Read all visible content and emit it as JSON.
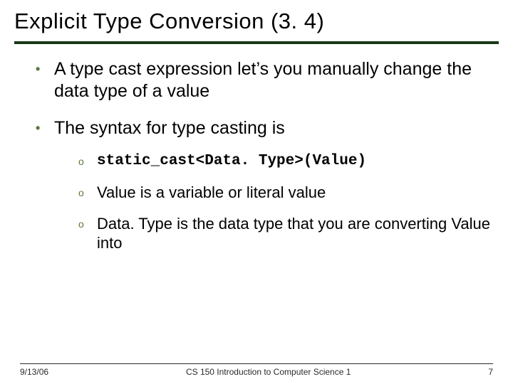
{
  "title": "Explicit Type Conversion (3. 4)",
  "colors": {
    "rule": "#1a3a1a",
    "bullet": "#5a7a3a",
    "text": "#000000",
    "background": "#ffffff"
  },
  "typography": {
    "title_fontsize": 31,
    "body_fontsize": 25,
    "sub_fontsize": 22,
    "code_fontsize": 21,
    "footer_fontsize": 12,
    "title_font": "Verdana",
    "body_font": "Arial",
    "code_font": "Courier New"
  },
  "bullets": [
    {
      "text": "A type cast expression let’s you manually change the data type of a value"
    },
    {
      "text": "The syntax for type casting is",
      "subs": [
        {
          "text": "static_cast<Data. Type>(Value)",
          "code": true
        },
        {
          "text": "Value is a variable or literal value"
        },
        {
          "text": "Data. Type is the data type that you are converting Value into"
        }
      ]
    }
  ],
  "footer": {
    "date": "9/13/06",
    "course": "CS 150 Introduction to Computer Science 1",
    "page": "7"
  }
}
